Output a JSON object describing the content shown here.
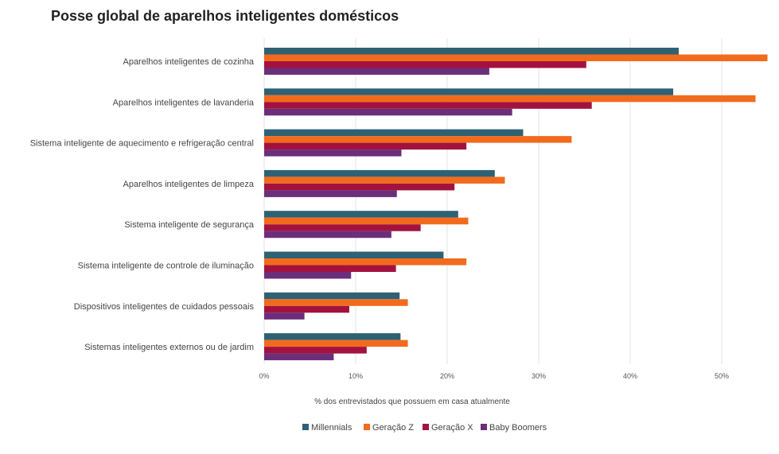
{
  "chart_data": {
    "type": "bar",
    "orientation": "horizontal",
    "title": "Posse global de aparelhos inteligentes domésticos",
    "xlabel": "% dos entrevistados que possuem em casa atualmente",
    "ylabel": "",
    "xlim": [
      0,
      55
    ],
    "ticks": [
      0,
      10,
      20,
      30,
      40,
      50
    ],
    "tick_labels": [
      "0%",
      "10%",
      "20%",
      "30%",
      "40%",
      "50%"
    ],
    "grid": true,
    "legend_position": "bottom",
    "categories": [
      "Aparelhos inteligentes de cozinha",
      "Aparelhos inteligentes de lavanderia",
      "Sistema inteligente de aquecimento e refrigeração central",
      "Aparelhos inteligentes de limpeza",
      "Sistema inteligente de segurança",
      "Sistema inteligente de controle de iluminação",
      "Dispositivos inteligentes de cuidados pessoais",
      "Sistemas inteligentes externos ou de jardim"
    ],
    "series": [
      {
        "name": "Millennials",
        "color": "#2e6174",
        "values": [
          45.3,
          44.7,
          28.3,
          25.2,
          21.2,
          19.6,
          14.8,
          14.9
        ]
      },
      {
        "name": "Geração Z",
        "color": "#f26b1d",
        "values": [
          55.0,
          53.7,
          33.6,
          26.3,
          22.3,
          22.1,
          15.7,
          15.7
        ]
      },
      {
        "name": "Geração X",
        "color": "#a3123e",
        "values": [
          35.2,
          35.8,
          22.1,
          20.8,
          17.1,
          14.4,
          9.3,
          11.2
        ]
      },
      {
        "name": "Baby Boomers",
        "color": "#6b2e7a",
        "values": [
          24.6,
          27.1,
          15.0,
          14.5,
          13.9,
          9.5,
          4.4,
          7.6
        ]
      }
    ]
  }
}
